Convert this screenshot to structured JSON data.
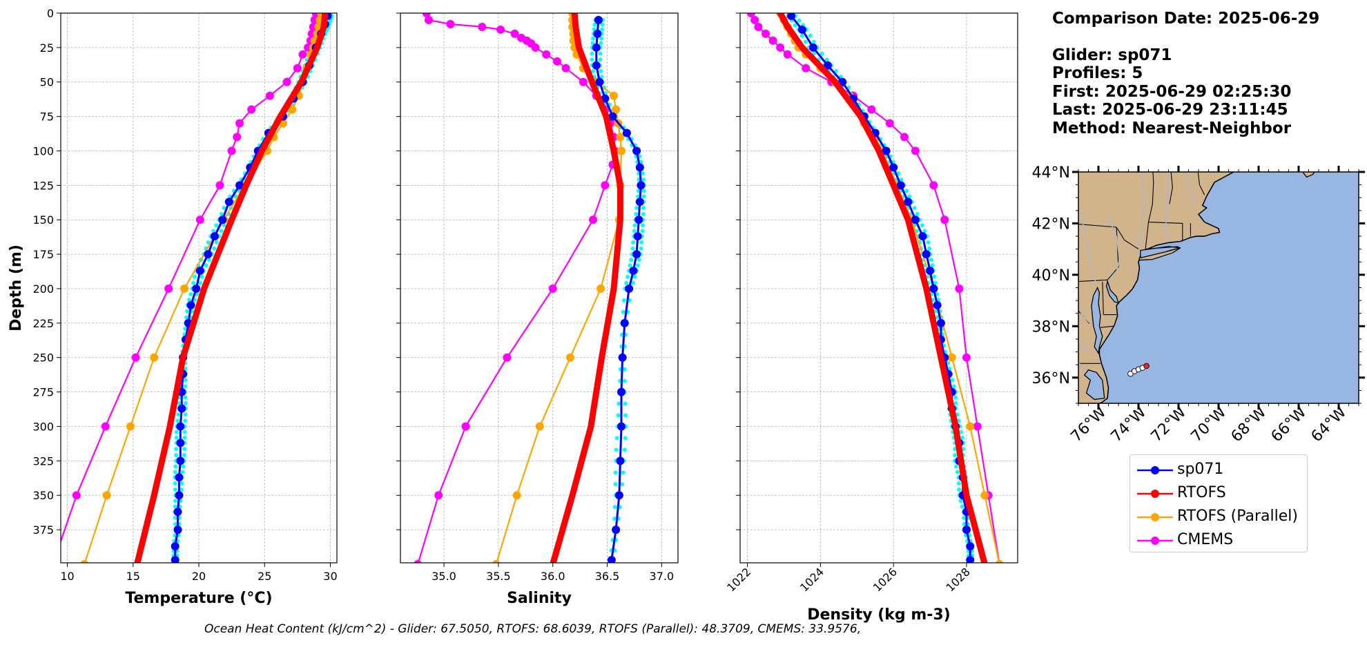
{
  "info": {
    "comparison_date": "Comparison Date: 2025-06-29",
    "glider": "Glider: sp071",
    "profiles": "Profiles: 5",
    "first": "First: 2025-06-29 02:25:30",
    "last": "Last: 2025-06-29 23:11:45",
    "method": "Method: Nearest-Neighbor"
  },
  "footer": "Ocean Heat Content (kJ/cm^2) - Glider: 67.5050,  RTOFS: 68.6039,  RTOFS (Parallel): 48.3709,  CMEMS: 33.9576,",
  "colors": {
    "glider": "#0000ff",
    "glider_raw": "#00ffff",
    "rtofs": "#ff0000",
    "rtofs_parallel": "#ffa500",
    "cmems": "#ff00ff",
    "land": "#d2b48c",
    "ocean": "#97b6e1",
    "rivers": "#a9b8c8"
  },
  "legend": [
    {
      "label": "sp071",
      "color": "#0000ff"
    },
    {
      "label": "RTOFS",
      "color": "#ff0000"
    },
    {
      "label": "RTOFS (Parallel)",
      "color": "#ffa500"
    },
    {
      "label": "CMEMS",
      "color": "#ff00ff"
    }
  ],
  "chart_data": [
    {
      "type": "line",
      "xlabel": "Temperature (°C)",
      "ylabel": "Depth (m)",
      "xlim": [
        9.5,
        30.5
      ],
      "ylim": [
        399,
        0
      ],
      "xticks": [
        10,
        15,
        20,
        25,
        30
      ],
      "yticks": [
        0,
        25,
        50,
        75,
        100,
        125,
        150,
        175,
        200,
        225,
        250,
        275,
        300,
        325,
        350,
        375
      ],
      "grid": true,
      "series": [
        {
          "name": "sp071",
          "depth": [
            2,
            8,
            15,
            25,
            38,
            50,
            62,
            75,
            87,
            100,
            112,
            125,
            137,
            150,
            162,
            175,
            187,
            200,
            212,
            225,
            237,
            250,
            262,
            275,
            287,
            300,
            312,
            325,
            337,
            350,
            362,
            375,
            387,
            397
          ],
          "values": [
            29.8,
            29.6,
            29.3,
            28.9,
            28.4,
            27.9,
            27.2,
            26.4,
            25.3,
            24.5,
            23.9,
            23.1,
            22.3,
            21.8,
            21.2,
            20.7,
            20.1,
            19.8,
            19.4,
            19.2,
            19.0,
            18.8,
            18.8,
            18.7,
            18.7,
            18.6,
            18.6,
            18.6,
            18.5,
            18.5,
            18.4,
            18.4,
            18.2,
            18.2
          ]
        },
        {
          "name": "RTOFS",
          "depth": [
            0,
            10,
            25,
            50,
            75,
            100,
            125,
            150,
            200,
            250,
            300,
            350,
            400
          ],
          "values": [
            29.6,
            29.5,
            29.0,
            27.8,
            26.2,
            24.8,
            23.6,
            22.5,
            20.4,
            18.8,
            17.8,
            16.6,
            15.3
          ]
        },
        {
          "name": "RTOFS (Parallel)",
          "depth": [
            0,
            5,
            10,
            15,
            20,
            25,
            30,
            40,
            50,
            60,
            70,
            80,
            90,
            100,
            125,
            150,
            200,
            250,
            300,
            350,
            400
          ],
          "values": [
            29.3,
            29.2,
            29.1,
            29.0,
            28.8,
            28.7,
            28.5,
            28.2,
            27.9,
            27.6,
            27.1,
            26.4,
            25.7,
            25.2,
            23.5,
            21.9,
            18.9,
            16.6,
            14.8,
            13.0,
            11.3
          ]
        },
        {
          "name": "CMEMS",
          "depth": [
            0,
            5,
            10,
            15,
            20,
            25,
            30,
            40,
            50,
            60,
            70,
            80,
            90,
            100,
            125,
            150,
            200,
            250,
            300,
            350,
            400
          ],
          "values": [
            28.9,
            28.8,
            28.7,
            28.6,
            28.5,
            28.3,
            27.9,
            27.5,
            26.7,
            25.4,
            24.0,
            23.1,
            22.9,
            22.5,
            21.6,
            20.1,
            17.7,
            15.2,
            12.9,
            10.7,
            8.9
          ]
        }
      ]
    },
    {
      "type": "line",
      "xlabel": "Salinity",
      "xlim": [
        34.6,
        37.15
      ],
      "ylim": [
        399,
        0
      ],
      "xticks": [
        35.0,
        35.5,
        36.0,
        36.5,
        37.0
      ],
      "yticks": [
        0,
        25,
        50,
        75,
        100,
        125,
        150,
        175,
        200,
        225,
        250,
        275,
        300,
        325,
        350,
        375
      ],
      "grid": true,
      "series": [
        {
          "name": "sp071",
          "depth": [
            5,
            15,
            25,
            38,
            50,
            62,
            75,
            87,
            100,
            112,
            125,
            137,
            150,
            162,
            175,
            187,
            200,
            225,
            250,
            275,
            300,
            325,
            350,
            375,
            397
          ],
          "values": [
            36.42,
            36.41,
            36.4,
            36.4,
            36.43,
            36.48,
            36.55,
            36.68,
            36.77,
            36.8,
            36.81,
            36.8,
            36.79,
            36.78,
            36.77,
            36.74,
            36.7,
            36.66,
            36.64,
            36.63,
            36.63,
            36.62,
            36.61,
            36.58,
            36.54
          ]
        },
        {
          "name": "RTOFS",
          "depth": [
            0,
            10,
            25,
            50,
            75,
            100,
            125,
            150,
            200,
            250,
            300,
            350,
            400
          ],
          "values": [
            36.2,
            36.21,
            36.24,
            36.36,
            36.49,
            36.56,
            36.62,
            36.62,
            36.56,
            36.45,
            36.35,
            36.18,
            36.0
          ]
        },
        {
          "name": "RTOFS (Parallel)",
          "depth": [
            0,
            5,
            10,
            15,
            20,
            25,
            30,
            40,
            50,
            60,
            70,
            80,
            90,
            100,
            125,
            150,
            200,
            250,
            300,
            350,
            400
          ],
          "values": [
            36.18,
            36.18,
            36.18,
            36.19,
            36.19,
            36.2,
            36.22,
            36.28,
            36.4,
            36.56,
            36.58,
            36.6,
            36.62,
            36.63,
            36.62,
            36.61,
            36.44,
            36.16,
            35.88,
            35.67,
            35.48
          ]
        },
        {
          "name": "CMEMS",
          "depth": [
            0,
            5,
            8,
            10,
            12,
            15,
            18,
            20,
            22,
            25,
            30,
            35,
            40,
            50,
            60,
            70,
            80,
            90,
            100,
            110,
            125,
            150,
            200,
            250,
            300,
            350,
            400
          ],
          "values": [
            34.84,
            34.86,
            35.06,
            35.35,
            35.52,
            35.65,
            35.71,
            35.76,
            35.8,
            35.84,
            35.94,
            36.04,
            36.12,
            36.28,
            36.4,
            36.48,
            36.53,
            36.56,
            36.57,
            36.55,
            36.48,
            36.37,
            36.0,
            35.58,
            35.2,
            34.95,
            34.76
          ]
        }
      ]
    },
    {
      "type": "line",
      "xlabel": "Density (kg m-3)",
      "xlim": [
        1021.8,
        1029.4
      ],
      "ylim": [
        399,
        0
      ],
      "xticks": [
        1022,
        1024,
        1026,
        1028
      ],
      "yticks": [
        0,
        25,
        50,
        75,
        100,
        125,
        150,
        175,
        200,
        225,
        250,
        275,
        300,
        325,
        350,
        375
      ],
      "grid": true,
      "series": [
        {
          "name": "sp071",
          "depth": [
            2,
            12,
            25,
            38,
            50,
            62,
            75,
            87,
            100,
            112,
            125,
            137,
            150,
            162,
            175,
            187,
            200,
            212,
            225,
            237,
            250,
            262,
            275,
            287,
            300,
            312,
            325,
            337,
            350,
            362,
            375,
            387,
            397
          ],
          "values": [
            1023.2,
            1023.5,
            1023.8,
            1024.2,
            1024.6,
            1024.9,
            1025.2,
            1025.5,
            1025.8,
            1026.0,
            1026.2,
            1026.4,
            1026.6,
            1026.8,
            1026.9,
            1027.0,
            1027.1,
            1027.2,
            1027.3,
            1027.3,
            1027.4,
            1027.5,
            1027.6,
            1027.6,
            1027.7,
            1027.8,
            1027.8,
            1027.9,
            1027.9,
            1028.0,
            1028.0,
            1028.1,
            1028.1
          ]
        },
        {
          "name": "RTOFS",
          "depth": [
            0,
            10,
            25,
            50,
            75,
            100,
            125,
            150,
            200,
            250,
            300,
            350,
            400
          ],
          "values": [
            1022.9,
            1023.1,
            1023.5,
            1024.4,
            1025.1,
            1025.6,
            1026.0,
            1026.4,
            1026.9,
            1027.3,
            1027.7,
            1028.0,
            1028.5
          ]
        },
        {
          "name": "RTOFS (Parallel)",
          "depth": [
            0,
            5,
            10,
            15,
            20,
            25,
            30,
            40,
            50,
            60,
            70,
            80,
            90,
            100,
            125,
            150,
            200,
            250,
            300,
            350,
            400
          ],
          "values": [
            1022.9,
            1023.0,
            1023.1,
            1023.2,
            1023.3,
            1023.4,
            1023.6,
            1024.0,
            1024.4,
            1024.8,
            1025.0,
            1025.2,
            1025.5,
            1025.7,
            1026.1,
            1026.5,
            1027.1,
            1027.6,
            1028.1,
            1028.5,
            1028.9
          ]
        },
        {
          "name": "CMEMS",
          "depth": [
            0,
            5,
            10,
            15,
            20,
            25,
            30,
            40,
            50,
            60,
            70,
            80,
            90,
            100,
            125,
            150,
            200,
            250,
            300,
            350,
            400
          ],
          "values": [
            1022.1,
            1022.2,
            1022.3,
            1022.5,
            1022.7,
            1022.9,
            1023.1,
            1023.6,
            1024.3,
            1024.9,
            1025.4,
            1025.9,
            1026.3,
            1026.6,
            1027.1,
            1027.4,
            1027.8,
            1028.0,
            1028.3,
            1028.6,
            1028.9
          ]
        }
      ]
    },
    {
      "type": "map",
      "lon_range": [
        -77.0,
        -63.0
      ],
      "lat_range": [
        35.0,
        44.0
      ],
      "xticks": [
        "76°W",
        "74°W",
        "72°W",
        "70°W",
        "68°W",
        "66°W",
        "64°W"
      ],
      "yticks": [
        "44°N",
        "42°N",
        "40°N",
        "38°N",
        "36°N"
      ],
      "track": [
        [
          -74.4,
          36.15
        ],
        [
          -74.2,
          36.25
        ],
        [
          -74.0,
          36.32
        ],
        [
          -73.8,
          36.38
        ],
        [
          -73.6,
          36.45
        ]
      ]
    }
  ]
}
